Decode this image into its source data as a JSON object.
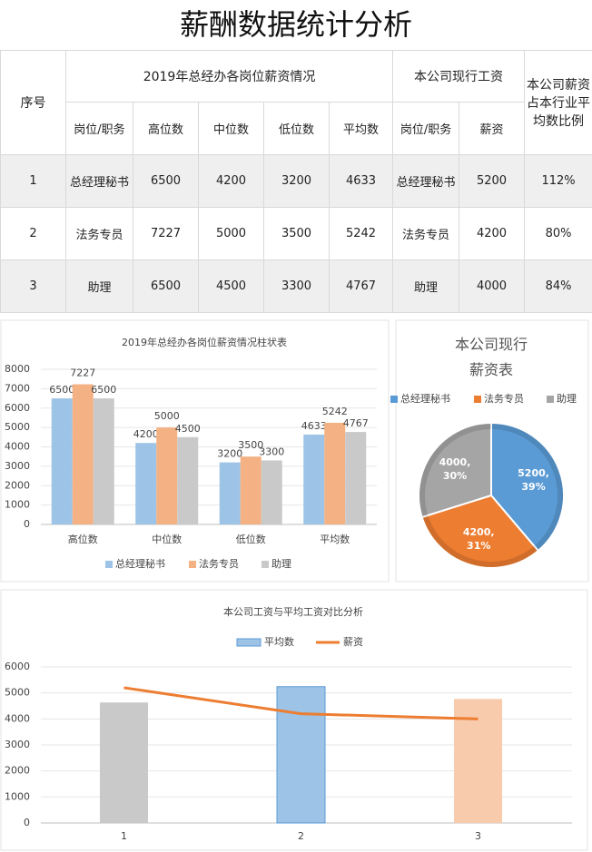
{
  "title": "薪酬数据统计分析",
  "table": {
    "header": {
      "index": "序号",
      "group1": "2019年总经办各岗位薪资情况",
      "group2": "本公司现行工资",
      "ratio": "本公司薪资占本行业平均数比例",
      "sub1": [
        "岗位/职务",
        "高位数",
        "中位数",
        "低位数",
        "平均数"
      ],
      "sub2": [
        "岗位/职务",
        "薪资"
      ]
    },
    "rows": [
      [
        1,
        "总经理秘书",
        6500,
        4200,
        3200,
        4633,
        "总经理秘书",
        5200,
        "112%"
      ],
      [
        2,
        "法务专员",
        7227,
        5000,
        3500,
        5242,
        "法务专员",
        4200,
        "80%"
      ],
      [
        3,
        "助理",
        6500,
        4500,
        3300,
        4767,
        "助理",
        4000,
        "84%"
      ]
    ]
  },
  "chart_data": [
    {
      "type": "bar",
      "title": "2019年总经办各岗位薪资情况柱状表",
      "categories": [
        "高位数",
        "中位数",
        "低位数",
        "平均数"
      ],
      "series": [
        {
          "name": "总经理秘书",
          "color": "#9dc3e6",
          "values": [
            6500,
            4200,
            3200,
            4633
          ]
        },
        {
          "name": "法务专员",
          "color": "#f4b183",
          "values": [
            7227,
            5000,
            3500,
            5242
          ]
        },
        {
          "name": "助理",
          "color": "#c9c9c9",
          "values": [
            6500,
            4500,
            3300,
            4767
          ]
        }
      ],
      "ylim": [
        0,
        8000
      ],
      "yticks": [
        0,
        1000,
        2000,
        3000,
        4000,
        5000,
        6000,
        7000,
        8000
      ],
      "grid": true,
      "legend": "bottom"
    },
    {
      "type": "pie",
      "title": "本公司现行薪资表",
      "categories": [
        "总经理秘书",
        "法务专员",
        "助理"
      ],
      "colors": [
        "#5b9bd5",
        "#ed7d31",
        "#a5a5a5"
      ],
      "values": [
        5200,
        4200,
        4000
      ],
      "value_labels": [
        "5200,\n39%",
        "4200,\n31%",
        "4000,\n30%"
      ],
      "legend": "top"
    },
    {
      "type": "combo",
      "title": "本公司工资与平均工资对比分析",
      "categories": [
        "1",
        "2",
        "3"
      ],
      "series": [
        {
          "name": "平均数",
          "type": "bar",
          "color": "#9dc3e6",
          "colors": [
            "#c9c9c9",
            "#9dc3e6",
            "#f8cbad"
          ],
          "values": [
            4633,
            5242,
            4767
          ]
        },
        {
          "name": "薪资",
          "type": "line",
          "color": "#ed7d31",
          "values": [
            5200,
            4200,
            4000
          ]
        }
      ],
      "ylim": [
        0,
        6000
      ],
      "yticks": [
        0,
        1000,
        2000,
        3000,
        4000,
        5000,
        6000
      ],
      "grid": true,
      "legend": "top"
    }
  ]
}
